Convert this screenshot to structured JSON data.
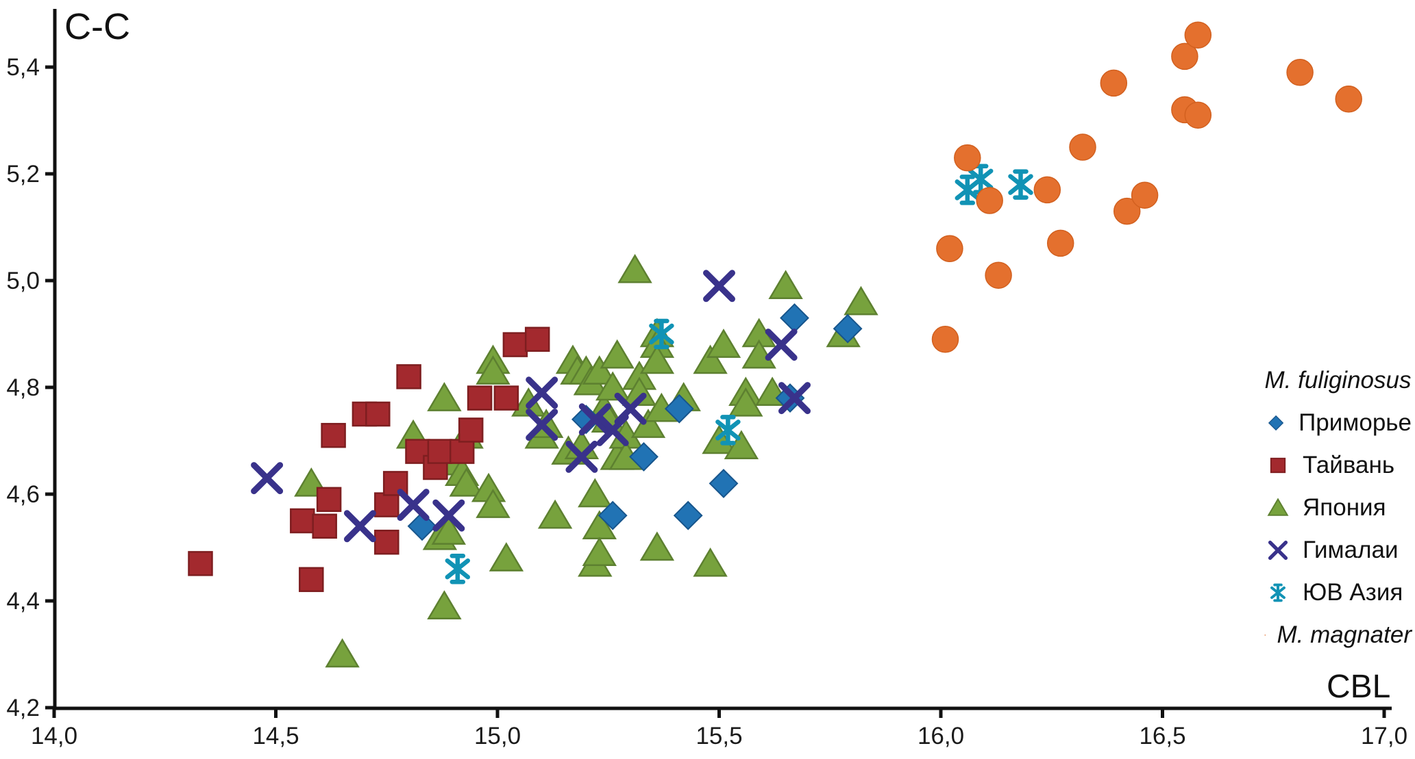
{
  "legend": {
    "header": "M. fuliginosus"
  },
  "chart_data": {
    "type": "scatter",
    "title": "",
    "xlabel": "CBL",
    "ylabel": "С-С",
    "xlim": [
      14.0,
      17.0
    ],
    "ylim": [
      4.2,
      5.48
    ],
    "grid": false,
    "legend_position": "right",
    "x_ticks": [
      {
        "v": 14.0,
        "label": "14,0"
      },
      {
        "v": 14.5,
        "label": "14,5"
      },
      {
        "v": 15.0,
        "label": "15,0"
      },
      {
        "v": 15.5,
        "label": "15,5"
      },
      {
        "v": 16.0,
        "label": "16,0"
      },
      {
        "v": 16.5,
        "label": "16,5"
      },
      {
        "v": 17.0,
        "label": "17,0"
      }
    ],
    "y_ticks": [
      {
        "v": 4.2,
        "label": "4,2"
      },
      {
        "v": 4.4,
        "label": "4,4"
      },
      {
        "v": 4.6,
        "label": "4,6"
      },
      {
        "v": 4.8,
        "label": "4,8"
      },
      {
        "v": 5.0,
        "label": "5,0"
      },
      {
        "v": 5.2,
        "label": "5,2"
      },
      {
        "v": 5.4,
        "label": "5,4"
      }
    ],
    "series": [
      {
        "name": "Приморье",
        "group": "M. fuliginosus",
        "marker": "diamond",
        "color": "#2173B4",
        "stroke": "#17558C",
        "italic": false,
        "z": 2,
        "points": [
          [
            14.83,
            4.54
          ],
          [
            15.2,
            4.74
          ],
          [
            15.26,
            4.56
          ],
          [
            15.33,
            4.67
          ],
          [
            15.41,
            4.76
          ],
          [
            15.43,
            4.56
          ],
          [
            15.51,
            4.62
          ],
          [
            15.66,
            4.78
          ],
          [
            15.67,
            4.93
          ],
          [
            15.79,
            4.91
          ]
        ]
      },
      {
        "name": "Тайвань",
        "group": "M. fuliginosus",
        "marker": "square",
        "color": "#A3292E",
        "stroke": "#7E1E20",
        "italic": false,
        "z": 1,
        "points": [
          [
            14.33,
            4.47
          ],
          [
            14.56,
            4.55
          ],
          [
            14.58,
            4.44
          ],
          [
            14.61,
            4.54
          ],
          [
            14.62,
            4.59
          ],
          [
            14.63,
            4.71
          ],
          [
            14.7,
            4.75
          ],
          [
            14.73,
            4.75
          ],
          [
            14.75,
            4.58
          ],
          [
            14.75,
            4.51
          ],
          [
            14.77,
            4.62
          ],
          [
            14.8,
            4.82
          ],
          [
            14.82,
            4.68
          ],
          [
            14.86,
            4.65
          ],
          [
            14.87,
            4.68
          ],
          [
            14.92,
            4.68
          ],
          [
            14.94,
            4.72
          ],
          [
            14.96,
            4.78
          ],
          [
            15.02,
            4.78
          ],
          [
            15.04,
            4.88
          ],
          [
            15.09,
            4.89
          ]
        ]
      },
      {
        "name": "Япония",
        "group": "M. fuliginosus",
        "marker": "triangle",
        "color": "#77A23D",
        "stroke": "#5D8030",
        "italic": false,
        "z": 0,
        "points": [
          [
            14.58,
            4.62
          ],
          [
            14.65,
            4.3
          ],
          [
            14.81,
            4.71
          ],
          [
            14.87,
            4.52
          ],
          [
            14.88,
            4.78
          ],
          [
            14.88,
            4.39
          ],
          [
            14.89,
            4.66
          ],
          [
            14.89,
            4.53
          ],
          [
            14.92,
            4.64
          ],
          [
            14.93,
            4.71
          ],
          [
            14.93,
            4.62
          ],
          [
            14.98,
            4.61
          ],
          [
            14.99,
            4.85
          ],
          [
            14.99,
            4.83
          ],
          [
            14.99,
            4.58
          ],
          [
            15.02,
            4.48
          ],
          [
            15.07,
            4.77
          ],
          [
            15.1,
            4.71
          ],
          [
            15.11,
            4.73
          ],
          [
            15.13,
            4.56
          ],
          [
            15.16,
            4.68
          ],
          [
            15.17,
            4.85
          ],
          [
            15.18,
            4.83
          ],
          [
            15.19,
            4.69
          ],
          [
            15.2,
            4.83
          ],
          [
            15.21,
            4.81
          ],
          [
            15.22,
            4.6
          ],
          [
            15.22,
            4.47
          ],
          [
            15.23,
            4.83
          ],
          [
            15.23,
            4.54
          ],
          [
            15.23,
            4.49
          ],
          [
            15.24,
            4.76
          ],
          [
            15.25,
            4.74
          ],
          [
            15.26,
            4.8
          ],
          [
            15.27,
            4.86
          ],
          [
            15.27,
            4.67
          ],
          [
            15.29,
            4.71
          ],
          [
            15.29,
            4.67
          ],
          [
            15.31,
            5.02
          ],
          [
            15.32,
            4.82
          ],
          [
            15.32,
            4.79
          ],
          [
            15.34,
            4.73
          ],
          [
            15.36,
            4.9
          ],
          [
            15.36,
            4.88
          ],
          [
            15.36,
            4.85
          ],
          [
            15.36,
            4.5
          ],
          [
            15.37,
            4.76
          ],
          [
            15.42,
            4.78
          ],
          [
            15.48,
            4.85
          ],
          [
            15.48,
            4.47
          ],
          [
            15.5,
            4.7
          ],
          [
            15.51,
            4.88
          ],
          [
            15.55,
            4.69
          ],
          [
            15.56,
            4.79
          ],
          [
            15.56,
            4.77
          ],
          [
            15.59,
            4.9
          ],
          [
            15.59,
            4.86
          ],
          [
            15.62,
            4.79
          ],
          [
            15.65,
            4.99
          ],
          [
            15.78,
            4.9
          ],
          [
            15.82,
            4.96
          ]
        ]
      },
      {
        "name": "Гималаи",
        "group": "M. fuliginosus",
        "marker": "x",
        "color": "#39328B",
        "stroke": "#39328B",
        "italic": false,
        "z": 3,
        "points": [
          [
            14.48,
            4.63
          ],
          [
            14.69,
            4.54
          ],
          [
            14.81,
            4.58
          ],
          [
            14.89,
            4.56
          ],
          [
            15.1,
            4.79
          ],
          [
            15.1,
            4.73
          ],
          [
            15.19,
            4.67
          ],
          [
            15.22,
            4.74
          ],
          [
            15.26,
            4.72
          ],
          [
            15.3,
            4.76
          ],
          [
            15.5,
            4.99
          ],
          [
            15.64,
            4.88
          ],
          [
            15.67,
            4.78
          ]
        ]
      },
      {
        "name": "ЮВ Азия",
        "group": "M. fuliginosus",
        "marker": "zh-star",
        "color": "#1193B5",
        "stroke": "#1193B5",
        "italic": false,
        "z": 4,
        "points": [
          [
            14.91,
            4.46
          ],
          [
            15.37,
            4.9
          ],
          [
            15.52,
            4.72
          ],
          [
            16.06,
            5.17
          ],
          [
            16.09,
            5.19
          ],
          [
            16.18,
            5.18
          ]
        ]
      },
      {
        "name": "M. magnater",
        "group": "",
        "marker": "circle",
        "color": "#E4702E",
        "stroke": "#D2601F",
        "italic": true,
        "z": 5,
        "points": [
          [
            16.01,
            4.89
          ],
          [
            16.02,
            5.06
          ],
          [
            16.06,
            5.23
          ],
          [
            16.11,
            5.15
          ],
          [
            16.13,
            5.01
          ],
          [
            16.24,
            5.17
          ],
          [
            16.27,
            5.07
          ],
          [
            16.32,
            5.25
          ],
          [
            16.39,
            5.37
          ],
          [
            16.42,
            5.13
          ],
          [
            16.46,
            5.16
          ],
          [
            16.55,
            5.42
          ],
          [
            16.55,
            5.32
          ],
          [
            16.58,
            5.46
          ],
          [
            16.58,
            5.31
          ],
          [
            16.81,
            5.39
          ],
          [
            16.92,
            5.34
          ]
        ]
      }
    ]
  }
}
